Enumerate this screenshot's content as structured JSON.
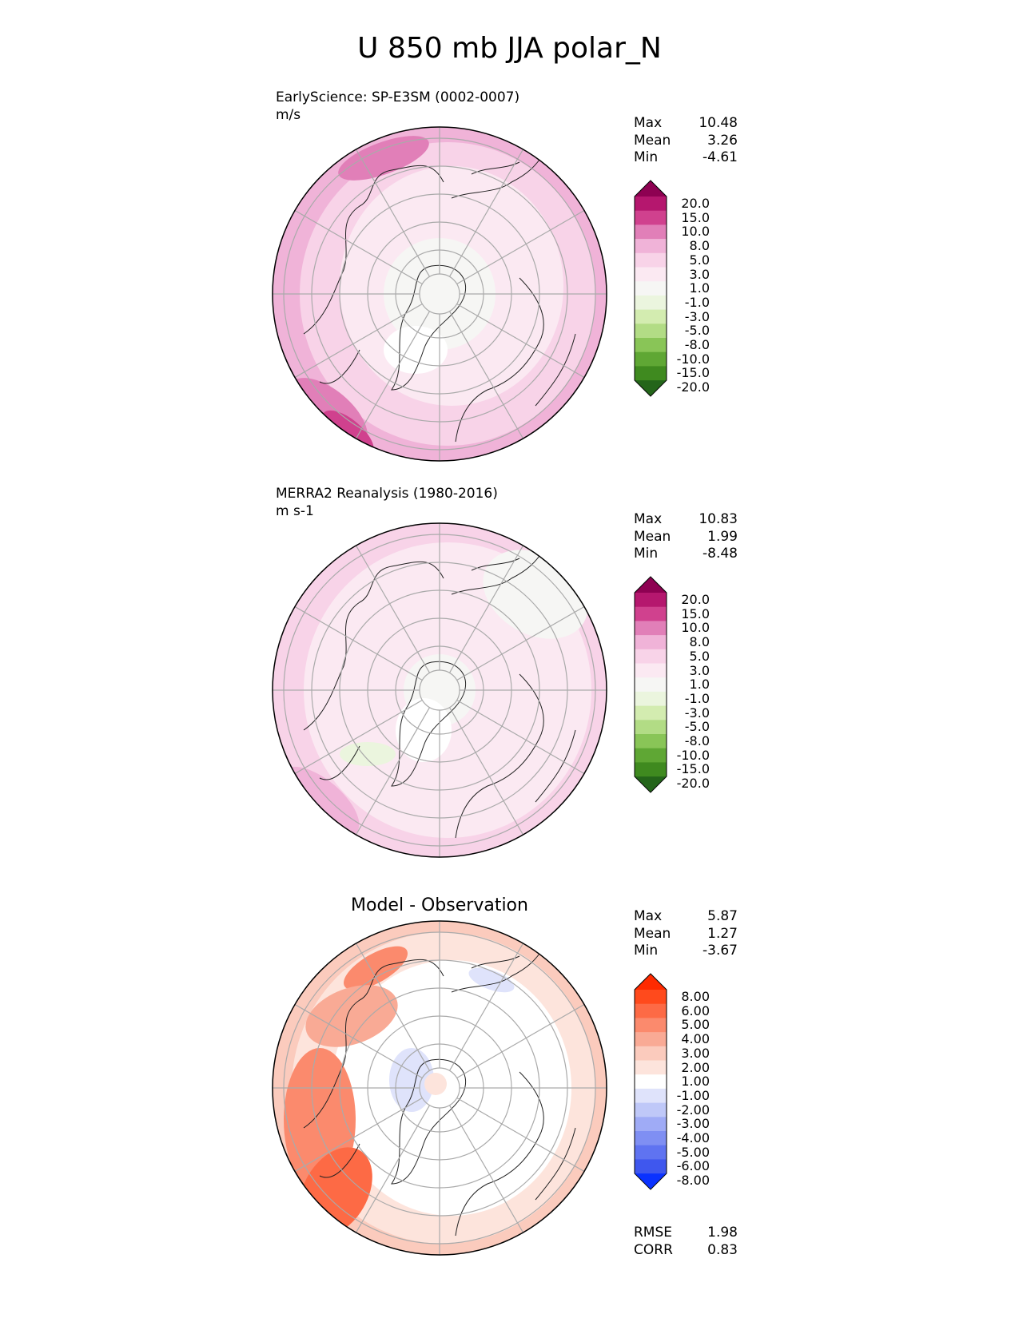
{
  "title": "U 850 mb JJA polar_N",
  "panels": [
    {
      "name": "test",
      "title_line1": "EarlyScience: SP-E3SM (0002-0007)",
      "title_line2": "m/s",
      "stats": {
        "max_label": "Max",
        "max": "10.48",
        "mean_label": "Mean",
        "mean": "3.26",
        "min_label": "Min",
        "min": "-4.61"
      },
      "colorbar_labels": [
        "20.0",
        "15.0",
        "10.0",
        "8.0",
        "5.0",
        "3.0",
        "1.0",
        "-1.0",
        "-3.0",
        "-5.0",
        "-8.0",
        "-10.0",
        "-15.0",
        "-20.0"
      ],
      "colors": [
        "#8e0152",
        "#b5176e",
        "#d0418e",
        "#e17fb8",
        "#f0b3d8",
        "#f8d3e8",
        "#fbe9f2",
        "#f6f6f4",
        "#ebf5de",
        "#d3ecb0",
        "#b2dc85",
        "#89c557",
        "#5fa734",
        "#3f8a1f",
        "#24651a"
      ]
    },
    {
      "name": "reference",
      "title_line1": "MERRA2 Reanalysis (1980-2016)",
      "title_line2": "m s-1",
      "stats": {
        "max_label": "Max",
        "max": "10.83",
        "mean_label": "Mean",
        "mean": "1.99",
        "min_label": "Min",
        "min": "-8.48"
      },
      "colorbar_labels": [
        "20.0",
        "15.0",
        "10.0",
        "8.0",
        "5.0",
        "3.0",
        "1.0",
        "-1.0",
        "-3.0",
        "-5.0",
        "-8.0",
        "-10.0",
        "-15.0",
        "-20.0"
      ],
      "colors": [
        "#8e0152",
        "#b5176e",
        "#d0418e",
        "#e17fb8",
        "#f0b3d8",
        "#f8d3e8",
        "#fbe9f2",
        "#f6f6f4",
        "#ebf5de",
        "#d3ecb0",
        "#b2dc85",
        "#89c557",
        "#5fa734",
        "#3f8a1f",
        "#24651a"
      ]
    },
    {
      "name": "diff",
      "title": "Model - Observation",
      "stats": {
        "max_label": "Max",
        "max": "5.87",
        "mean_label": "Mean",
        "mean": "1.27",
        "min_label": "Min",
        "min": "-3.67"
      },
      "metrics": {
        "rmse_label": "RMSE",
        "rmse": "1.98",
        "corr_label": "CORR",
        "corr": "0.83"
      },
      "colorbar_labels": [
        "8.00",
        "6.00",
        "5.00",
        "4.00",
        "3.00",
        "2.00",
        "1.00",
        "-1.00",
        "-2.00",
        "-3.00",
        "-4.00",
        "-5.00",
        "-6.00",
        "-8.00"
      ],
      "colors": [
        "#ff2a00",
        "#ff4a1c",
        "#fd6a45",
        "#fb8a6d",
        "#f9aa95",
        "#fbcbbd",
        "#fde4dc",
        "#ffffff",
        "#dfe3fb",
        "#bfc8f8",
        "#9fabf6",
        "#7f8ff3",
        "#5f73f1",
        "#3f57ee",
        "#0a32ff"
      ]
    }
  ]
}
